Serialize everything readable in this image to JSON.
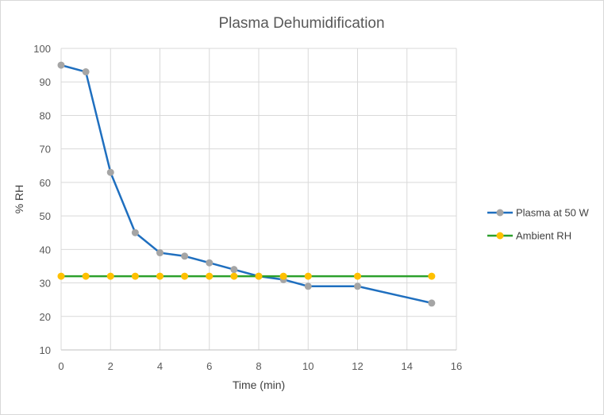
{
  "chart_data": {
    "type": "line",
    "title": "Plasma Dehumidification",
    "xlabel": "Time (min)",
    "ylabel": "% RH",
    "xlim": [
      0,
      16
    ],
    "ylim": [
      10,
      100
    ],
    "xticks": [
      0,
      2,
      4,
      6,
      8,
      10,
      12,
      14,
      16
    ],
    "yticks": [
      10,
      20,
      30,
      40,
      50,
      60,
      70,
      80,
      90,
      100
    ],
    "grid": true,
    "legend_position": "right",
    "series": [
      {
        "name": "Plasma at 50 W",
        "line_color": "#1f6fbf",
        "marker_color": "#a5a5a5",
        "x": [
          0,
          1,
          2,
          3,
          4,
          5,
          6,
          7,
          8,
          9,
          10,
          12,
          15
        ],
        "y": [
          95,
          93,
          63,
          45,
          39,
          38,
          36,
          34,
          32,
          31,
          29,
          29,
          24
        ]
      },
      {
        "name": "Ambient RH",
        "line_color": "#2ca02c",
        "marker_color": "#ffc000",
        "x": [
          0,
          1,
          2,
          3,
          4,
          5,
          6,
          7,
          8,
          9,
          10,
          12,
          15
        ],
        "y": [
          32,
          32,
          32,
          32,
          32,
          32,
          32,
          32,
          32,
          32,
          32,
          32,
          32
        ]
      }
    ]
  }
}
